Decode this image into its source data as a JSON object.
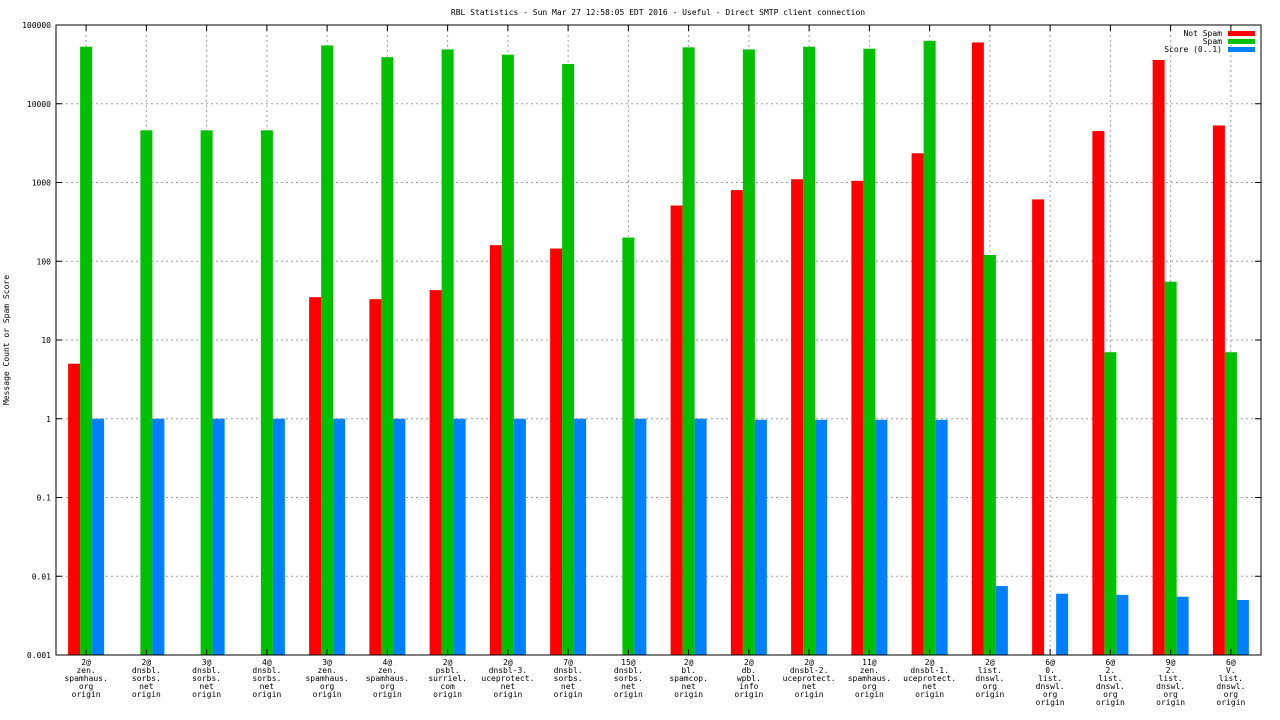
{
  "chart_data": {
    "type": "bar",
    "title": "RBL Statistics - Sun Mar 27 12:58:05 EDT 2016 - Useful - Direct SMTP client connection",
    "xlabel": "",
    "ylabel": "Message Count or Spam Score",
    "yscale": "log",
    "ylim": [
      0.001,
      100000
    ],
    "y_ticks": [
      "0.001",
      "0.01",
      "0.1",
      "1",
      "10",
      "100",
      "1000",
      "10000",
      "100000"
    ],
    "grid": true,
    "legend_position": "top-right",
    "categories": [
      [
        "2@",
        "zen.",
        "spamhaus.",
        "org",
        "origin"
      ],
      [
        "2@",
        "dnsbl.",
        "sorbs.",
        "net",
        "origin"
      ],
      [
        "3@",
        "dnsbl.",
        "sorbs.",
        "net",
        "origin"
      ],
      [
        "4@",
        "dnsbl.",
        "sorbs.",
        "net",
        "origin"
      ],
      [
        "3@",
        "zen.",
        "spamhaus.",
        "org",
        "origin"
      ],
      [
        "4@",
        "zen.",
        "spamhaus.",
        "org",
        "origin"
      ],
      [
        "2@",
        "psbl.",
        "surriel.",
        "com",
        "origin"
      ],
      [
        "2@",
        "dnsbl-3.",
        "uceprotect.",
        "net",
        "origin"
      ],
      [
        "7@",
        "dnsbl.",
        "sorbs.",
        "net",
        "origin"
      ],
      [
        "15@",
        "dnsbl.",
        "sorbs.",
        "net",
        "origin"
      ],
      [
        "2@",
        "bl.",
        "spamcop.",
        "net",
        "origin"
      ],
      [
        "2@",
        "db.",
        "wpbl.",
        "info",
        "origin"
      ],
      [
        "2@",
        "dnsbl-2.",
        "uceprotect.",
        "net",
        "origin"
      ],
      [
        "11@",
        "zen.",
        "spamhaus.",
        "org",
        "origin"
      ],
      [
        "2@",
        "dnsbl-1.",
        "uceprotect.",
        "net",
        "origin"
      ],
      [
        "2@",
        "list.",
        "dnswl.",
        "org",
        "origin"
      ],
      [
        "6@",
        "0.",
        "list.",
        "dnswl.",
        "org",
        "origin"
      ],
      [
        "6@",
        "2.",
        "list.",
        "dnswl.",
        "org",
        "origin"
      ],
      [
        "9@",
        "2.",
        "list.",
        "dnswl.",
        "org",
        "origin"
      ],
      [
        "6@",
        "V.",
        "list.",
        "dnswl.",
        "org",
        "origin"
      ]
    ],
    "series": [
      {
        "name": "Not Spam",
        "color": "#ff0000",
        "values": [
          5,
          null,
          null,
          null,
          35,
          33,
          43,
          160,
          145,
          null,
          510,
          800,
          1100,
          1050,
          2350,
          60000,
          610,
          4500,
          36000,
          5300
        ]
      },
      {
        "name": "Spam",
        "color": "#00c000",
        "values": [
          53000,
          4600,
          4600,
          4600,
          55000,
          39000,
          49000,
          42000,
          32000,
          200,
          52000,
          49000,
          53000,
          50000,
          63000,
          120,
          null,
          7,
          55,
          7
        ]
      },
      {
        "name": "Score (0..1)",
        "color": "#0080ff",
        "values": [
          1,
          1,
          1,
          1,
          1,
          1,
          1,
          1,
          1,
          1,
          1,
          0.97,
          0.97,
          0.97,
          0.97,
          0.0075,
          0.006,
          0.0058,
          0.0055,
          0.005
        ]
      }
    ]
  }
}
